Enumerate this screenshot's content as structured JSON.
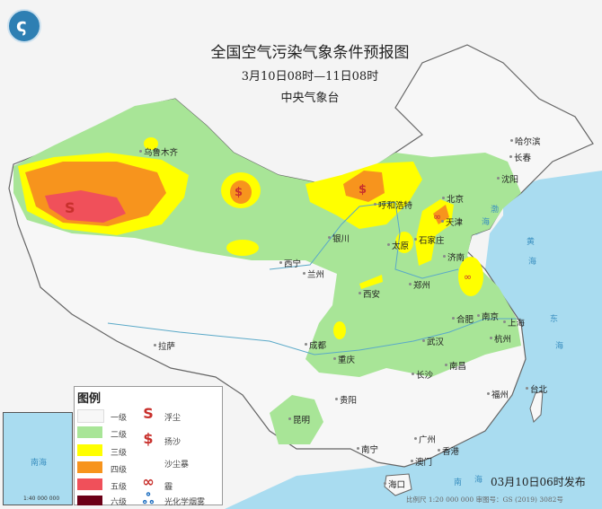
{
  "header": {
    "title": "全国空气污染气象条件预报图",
    "period": "3月10日08时—11日08时",
    "issuer": "中央气象台"
  },
  "colors": {
    "level1": "#f7f7f7",
    "level2": "#a8e597",
    "level3": "#ffff00",
    "level4": "#f7941d",
    "level5": "#f0505a",
    "level6": "#6b0017",
    "sea": "#a9dcf0",
    "symbol": "#c8302c",
    "photochemical": "#1f6fc0"
  },
  "legend": {
    "title": "图例",
    "levels": [
      "一级",
      "二级",
      "三级",
      "四级",
      "五级",
      "六级"
    ],
    "symbols": [
      {
        "icon": "floating-dust-icon",
        "label": "浮尘"
      },
      {
        "icon": "blowing-sand-icon",
        "label": "扬沙"
      },
      {
        "icon": "sandstorm-icon",
        "label": "沙尘暴"
      },
      {
        "icon": "haze-icon",
        "label": "霾"
      },
      {
        "icon": "photochemical-smog-icon",
        "label": "光化学烟雾"
      }
    ]
  },
  "cities": [
    "乌鲁木齐",
    "哈尔滨",
    "长春",
    "沈阳",
    "北京",
    "天津",
    "呼和浩特",
    "石家庄",
    "太原",
    "济南",
    "银川",
    "西宁",
    "兰州",
    "西安",
    "郑州",
    "合肥",
    "南京",
    "上海",
    "成都",
    "重庆",
    "武汉",
    "杭州",
    "长沙",
    "南昌",
    "拉萨",
    "贵阳",
    "昆明",
    "福州",
    "台北",
    "南宁",
    "广州",
    "香港",
    "澳门",
    "海口"
  ],
  "sea_labels": [
    "渤",
    "海",
    "黄",
    "海",
    "东",
    "海",
    "南",
    "海"
  ],
  "inset": {
    "label": "南海",
    "scale": "1:40 000 000"
  },
  "footer": {
    "published": "03月10日06时发布",
    "scale": "比例尺 1:20 000 000    审图号：GS (2019) 3082号"
  }
}
